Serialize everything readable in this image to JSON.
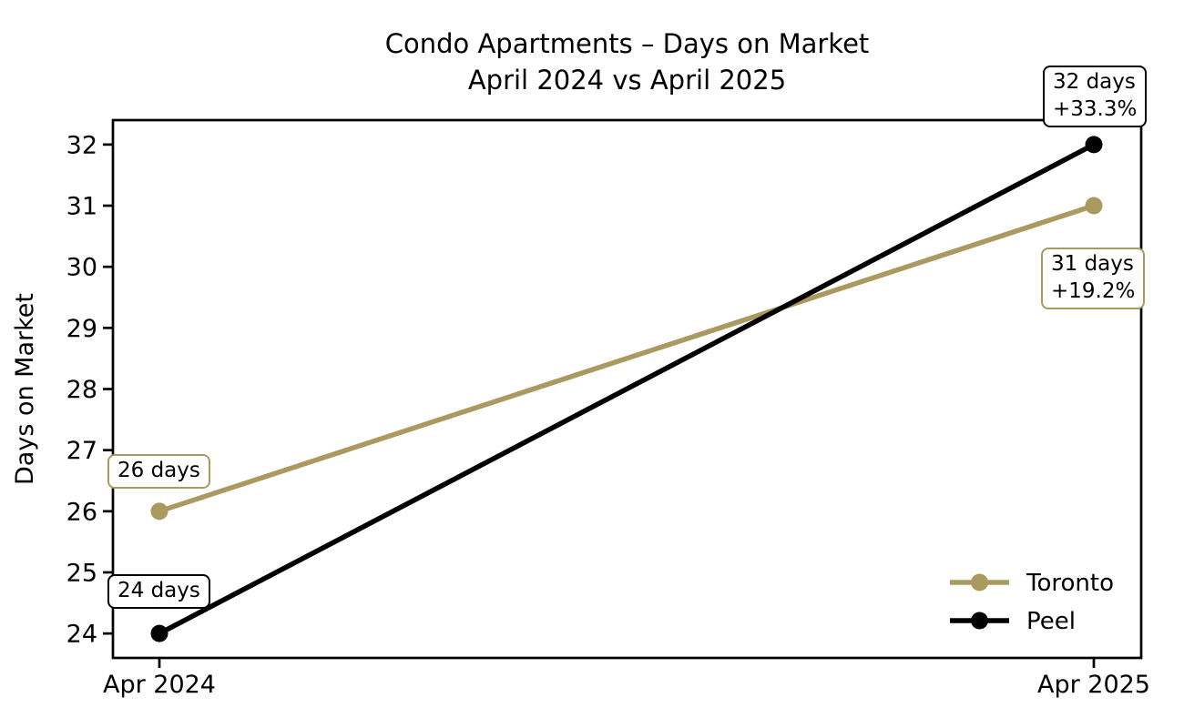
{
  "figure": {
    "title_line1": "Condo Apartments – Days on Market",
    "title_line2": "April 2024 vs April 2025"
  },
  "chart_data": {
    "type": "line",
    "title": "Condo Apartments – Days on Market\nApril 2024 vs April 2025",
    "xlabel": "",
    "ylabel": "Days on Market",
    "categories": [
      "Apr 2024",
      "Apr 2025"
    ],
    "series": [
      {
        "name": "Toronto",
        "values": [
          26,
          31
        ],
        "color": "#ab9a60"
      },
      {
        "name": "Peel",
        "values": [
          24,
          32
        ],
        "color": "#000000"
      }
    ],
    "yticks": [
      24,
      25,
      26,
      27,
      28,
      29,
      30,
      31,
      32
    ],
    "ylim": [
      23.6,
      32.4
    ],
    "grid": false,
    "legend": {
      "position": "lower right",
      "frame": false,
      "entries": [
        "Toronto",
        "Peel"
      ]
    },
    "annotations": [
      {
        "series": "Toronto",
        "point_index": 0,
        "text": [
          "26 days"
        ],
        "color": "#ab9a60",
        "offset": [
          -57,
          -63
        ]
      },
      {
        "series": "Peel",
        "point_index": 0,
        "text": [
          "24 days"
        ],
        "color": "#000000",
        "offset": [
          -57,
          -65
        ]
      },
      {
        "series": "Toronto",
        "point_index": 1,
        "text": [
          "31 days",
          "+19.2%"
        ],
        "color": "#ab9a60",
        "offset": [
          -58,
          46
        ]
      },
      {
        "series": "Peel",
        "point_index": 1,
        "text": [
          "32 days",
          "+33.3%"
        ],
        "color": "#000000",
        "offset": [
          -56,
          -87
        ]
      }
    ]
  }
}
